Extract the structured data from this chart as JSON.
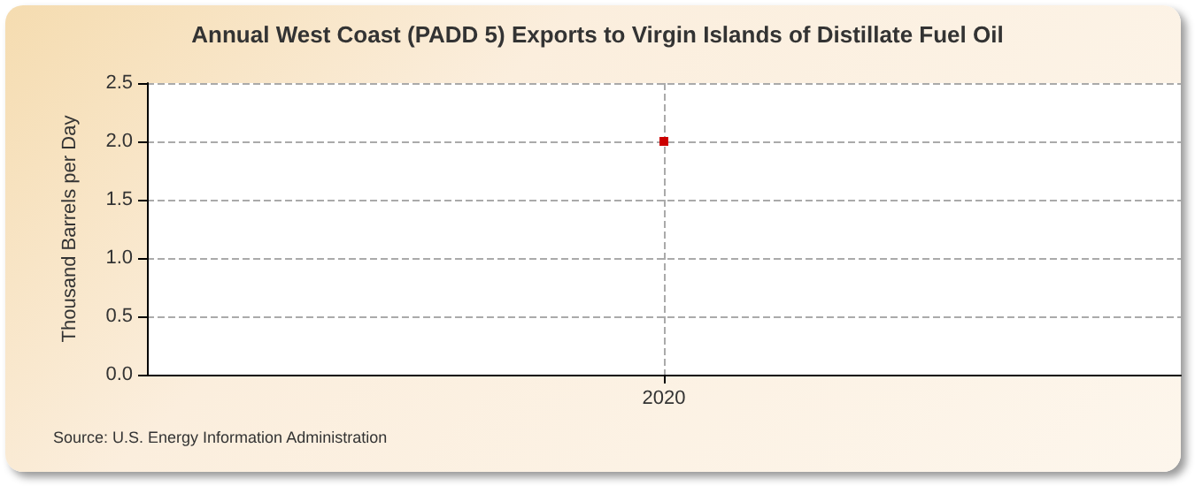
{
  "chart_data": {
    "type": "line",
    "title": "Annual West Coast (PADD 5) Exports to Virgin Islands of Distillate Fuel Oil",
    "ylabel": "Thousand Barrels per Day",
    "categories": [
      "2020"
    ],
    "series": [
      {
        "color": "#cc0000",
        "values": [
          2.0
        ]
      }
    ],
    "ylim": [
      0,
      2.5
    ],
    "yticks": [
      {
        "value": 0,
        "label": "0.0"
      },
      {
        "value": 0.5,
        "label": "0.5"
      },
      {
        "value": 1,
        "label": "1.0"
      },
      {
        "value": 1.5,
        "label": "1.5"
      },
      {
        "value": 2,
        "label": "2.0"
      },
      {
        "value": 2.5,
        "label": "2.5"
      }
    ],
    "grid": true,
    "marker": "square",
    "annotations": [
      "Source: U.S. Energy Information Administration"
    ]
  }
}
